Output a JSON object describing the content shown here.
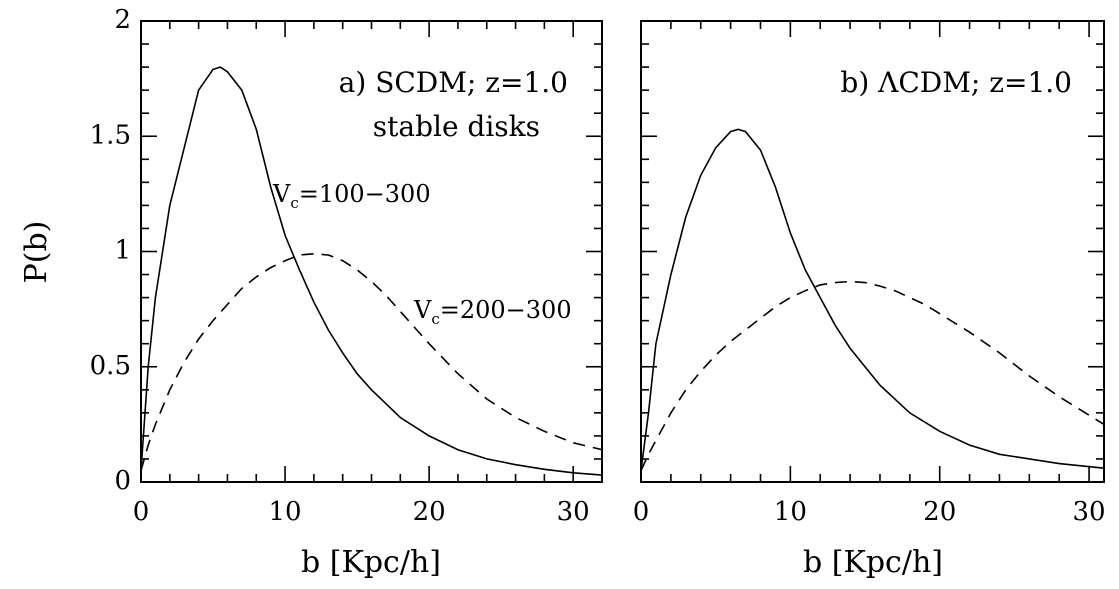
{
  "chart_data": [
    {
      "type": "line",
      "panel": "a",
      "xlabel": "b [Kpc/h]",
      "ylabel": "P(b)",
      "xlim": [
        0,
        32
      ],
      "ylim": [
        0,
        2
      ],
      "x_ticks": [
        "0",
        "10",
        "20",
        "30"
      ],
      "y_ticks": [
        "0",
        "0.5",
        "1",
        "1.5",
        "2"
      ],
      "grid": false,
      "annotations": {
        "title_line1": "a) SCDM; z=1.0",
        "title_line2": "stable disks",
        "solid_label_main": "V",
        "solid_label_sub": "c",
        "solid_label_range": "=100−300",
        "dashed_label_main": "V",
        "dashed_label_sub": "c",
        "dashed_label_range": "=200−300"
      },
      "series": [
        {
          "name": "V_c=100-300",
          "style": "solid",
          "x": [
            0,
            0.5,
            1,
            1.5,
            2,
            3,
            4,
            5,
            5.5,
            6,
            7,
            8,
            9,
            10,
            11,
            12,
            13,
            14,
            15,
            16,
            18,
            20,
            22,
            24,
            26,
            28,
            30,
            32
          ],
          "y": [
            0.05,
            0.5,
            0.8,
            1.0,
            1.2,
            1.45,
            1.7,
            1.79,
            1.8,
            1.78,
            1.7,
            1.53,
            1.28,
            1.07,
            0.92,
            0.78,
            0.66,
            0.56,
            0.47,
            0.4,
            0.28,
            0.2,
            0.14,
            0.1,
            0.075,
            0.055,
            0.04,
            0.03
          ]
        },
        {
          "name": "V_c=200-300",
          "style": "dashed",
          "x": [
            0,
            0.5,
            1,
            2,
            3,
            4,
            5,
            6,
            7,
            8,
            9,
            10,
            11,
            12,
            13,
            14,
            15,
            16,
            17,
            18,
            19,
            20,
            22,
            24,
            26,
            28,
            30,
            32
          ],
          "y": [
            0.05,
            0.16,
            0.25,
            0.4,
            0.52,
            0.62,
            0.7,
            0.77,
            0.84,
            0.89,
            0.93,
            0.96,
            0.985,
            0.99,
            0.985,
            0.96,
            0.92,
            0.87,
            0.81,
            0.74,
            0.67,
            0.6,
            0.47,
            0.36,
            0.28,
            0.22,
            0.17,
            0.14
          ]
        }
      ]
    },
    {
      "type": "line",
      "panel": "b",
      "xlabel": "b [Kpc/h]",
      "ylabel": "",
      "xlim": [
        0,
        31
      ],
      "ylim": [
        0,
        2
      ],
      "x_ticks": [
        "0",
        "10",
        "20",
        "30"
      ],
      "y_ticks": [],
      "grid": false,
      "annotations": {
        "title_line1": "b) ΛCDM; z=1.0"
      },
      "series": [
        {
          "name": "solid",
          "style": "solid",
          "x": [
            0,
            0.5,
            1,
            2,
            3,
            4,
            5,
            6,
            6.5,
            7,
            8,
            9,
            10,
            11,
            12,
            13,
            14,
            15,
            16,
            18,
            20,
            22,
            24,
            26,
            28,
            31
          ],
          "y": [
            0.05,
            0.3,
            0.6,
            0.9,
            1.15,
            1.33,
            1.45,
            1.52,
            1.53,
            1.52,
            1.44,
            1.28,
            1.08,
            0.92,
            0.8,
            0.68,
            0.58,
            0.5,
            0.42,
            0.3,
            0.22,
            0.16,
            0.12,
            0.1,
            0.08,
            0.06
          ]
        },
        {
          "name": "dashed",
          "style": "dashed",
          "x": [
            0,
            0.5,
            1,
            2,
            3,
            4,
            5,
            6,
            7,
            8,
            9,
            10,
            11,
            12,
            13,
            14,
            15,
            16,
            17,
            18,
            19,
            20,
            22,
            24,
            26,
            28,
            31
          ],
          "y": [
            0.05,
            0.12,
            0.18,
            0.3,
            0.4,
            0.48,
            0.55,
            0.61,
            0.66,
            0.71,
            0.76,
            0.8,
            0.83,
            0.855,
            0.865,
            0.87,
            0.865,
            0.85,
            0.83,
            0.8,
            0.77,
            0.73,
            0.65,
            0.56,
            0.46,
            0.37,
            0.25
          ]
        }
      ]
    }
  ]
}
